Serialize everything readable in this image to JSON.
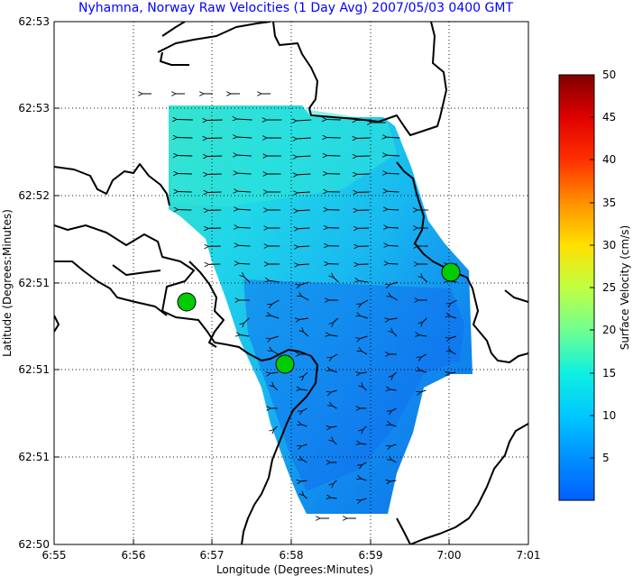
{
  "chart_data": {
    "type": "heatmap",
    "title": "Nyhamna, Norway Raw Velocities (1 Day Avg) 2007/05/03 0400 GMT",
    "xlabel": "Longitude (Degrees:Minutes)",
    "ylabel": "Latitude (Degrees:Minutes)",
    "xticks": [
      "6:55",
      "6:56",
      "6:57",
      "6:58",
      "6:59",
      "7:00",
      "7:01"
    ],
    "yticks": [
      "62:50",
      "62:51",
      "62:51",
      "62:51",
      "62:52",
      "62:53",
      "62:53"
    ],
    "grid": true,
    "colorbar": {
      "label": "Surface Velocity (cm/s)",
      "range": [
        0,
        50
      ],
      "ticks": [
        "5",
        "10",
        "15",
        "20",
        "25",
        "30",
        "35",
        "40",
        "45",
        "50"
      ],
      "colormap": "jet"
    },
    "velocity_range_cm_s": [
      0,
      15
    ],
    "stations": 3,
    "station_color": "#00cc00"
  }
}
